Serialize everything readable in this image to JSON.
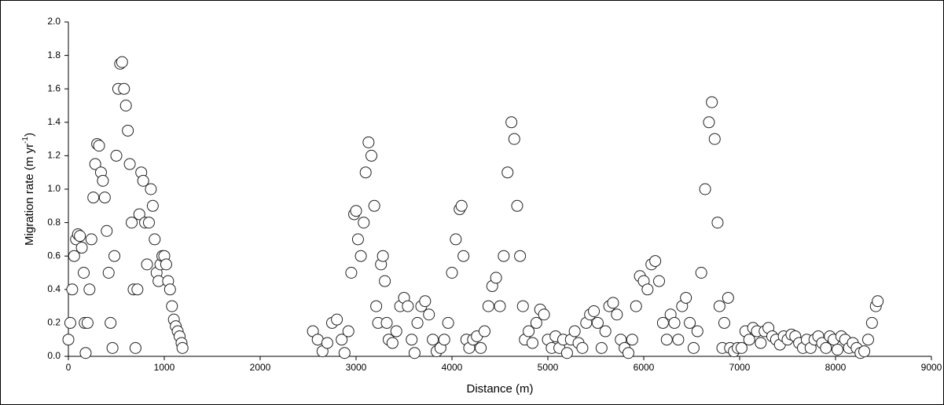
{
  "chart_data": {
    "type": "scatter",
    "xlabel": "Distance (m)",
    "ylabel_parts": [
      "Migration rate (m yr",
      "-1",
      ")"
    ],
    "xlim": [
      0,
      9000
    ],
    "xticks": [
      0,
      1000,
      2000,
      3000,
      4000,
      5000,
      6000,
      7000,
      8000,
      9000
    ],
    "ylim": [
      0,
      2
    ],
    "yticks": [
      {
        "value": 0,
        "label": "0.0"
      },
      0.2,
      0.4,
      0.6,
      0.8,
      {
        "value": 1,
        "label": "1.0"
      },
      1.2,
      1.4,
      1.6,
      1.8,
      {
        "value": 2,
        "label": "2.0"
      }
    ],
    "marker_fill": "#ffffff",
    "marker_edge": "#222222",
    "x": [
      0,
      20,
      40,
      60,
      80,
      100,
      120,
      140,
      160,
      170,
      180,
      200,
      220,
      240,
      260,
      280,
      300,
      320,
      340,
      360,
      380,
      400,
      420,
      440,
      460,
      480,
      500,
      520,
      540,
      560,
      580,
      600,
      620,
      640,
      660,
      680,
      700,
      720,
      740,
      760,
      780,
      800,
      820,
      840,
      860,
      880,
      900,
      920,
      940,
      960,
      980,
      1000,
      1020,
      1040,
      1060,
      1080,
      1100,
      1120,
      1140,
      1160,
      1180,
      1190,
      2550,
      2600,
      2650,
      2700,
      2750,
      2800,
      2850,
      2880,
      2920,
      2950,
      2980,
      3000,
      3020,
      3050,
      3080,
      3100,
      3130,
      3160,
      3190,
      3210,
      3230,
      3260,
      3280,
      3300,
      3320,
      3340,
      3380,
      3420,
      3460,
      3500,
      3540,
      3580,
      3610,
      3640,
      3680,
      3720,
      3760,
      3800,
      3840,
      3880,
      3920,
      3960,
      4000,
      4040,
      4080,
      4100,
      4120,
      4150,
      4180,
      4220,
      4260,
      4300,
      4340,
      4380,
      4420,
      4460,
      4500,
      4540,
      4580,
      4620,
      4650,
      4680,
      4710,
      4740,
      4760,
      4800,
      4840,
      4880,
      4920,
      4960,
      5000,
      5040,
      5080,
      5120,
      5160,
      5200,
      5240,
      5280,
      5320,
      5360,
      5400,
      5440,
      5480,
      5520,
      5560,
      5600,
      5640,
      5680,
      5720,
      5760,
      5800,
      5840,
      5880,
      5920,
      5960,
      6000,
      6040,
      6080,
      6120,
      6160,
      6200,
      6240,
      6280,
      6320,
      6360,
      6400,
      6440,
      6480,
      6520,
      6560,
      6600,
      6640,
      6680,
      6710,
      6740,
      6770,
      6790,
      6820,
      6840,
      6880,
      6900,
      6940,
      6980,
      7020,
      7060,
      7100,
      7140,
      7180,
      7220,
      7260,
      7300,
      7340,
      7380,
      7420,
      7460,
      7500,
      7540,
      7580,
      7620,
      7660,
      7700,
      7740,
      7780,
      7820,
      7860,
      7900,
      7940,
      7980,
      8020,
      8060,
      8100,
      8140,
      8180,
      8220,
      8260,
      8300,
      8340,
      8380,
      8420,
      8440
    ],
    "values": [
      0.1,
      0.2,
      0.4,
      0.6,
      0.7,
      0.73,
      0.72,
      0.65,
      0.5,
      0.2,
      0.02,
      0.2,
      0.4,
      0.7,
      0.95,
      1.15,
      1.27,
      1.26,
      1.1,
      1.05,
      0.95,
      0.75,
      0.5,
      0.2,
      0.05,
      0.6,
      1.2,
      1.6,
      1.75,
      1.76,
      1.6,
      1.5,
      1.35,
      1.15,
      0.8,
      0.4,
      0.05,
      0.4,
      0.85,
      1.1,
      1.05,
      0.8,
      0.55,
      0.8,
      1.0,
      0.9,
      0.7,
      0.5,
      0.45,
      0.55,
      0.6,
      0.6,
      0.55,
      0.45,
      0.4,
      0.3,
      0.22,
      0.18,
      0.15,
      0.12,
      0.08,
      0.05,
      0.15,
      0.1,
      0.03,
      0.08,
      0.2,
      0.22,
      0.1,
      0.02,
      0.15,
      0.5,
      0.85,
      0.87,
      0.7,
      0.6,
      0.8,
      1.1,
      1.28,
      1.2,
      0.9,
      0.3,
      0.2,
      0.55,
      0.6,
      0.45,
      0.2,
      0.1,
      0.08,
      0.15,
      0.3,
      0.35,
      0.3,
      0.1,
      0.02,
      0.2,
      0.3,
      0.33,
      0.25,
      0.1,
      0.03,
      0.05,
      0.1,
      0.2,
      0.5,
      0.7,
      0.88,
      0.9,
      0.6,
      0.1,
      0.05,
      0.1,
      0.12,
      0.05,
      0.15,
      0.3,
      0.42,
      0.47,
      0.3,
      0.6,
      1.1,
      1.4,
      1.3,
      0.9,
      0.6,
      0.3,
      0.1,
      0.15,
      0.08,
      0.2,
      0.28,
      0.25,
      0.1,
      0.05,
      0.12,
      0.05,
      0.1,
      0.02,
      0.1,
      0.15,
      0.08,
      0.05,
      0.2,
      0.25,
      0.27,
      0.2,
      0.05,
      0.15,
      0.3,
      0.32,
      0.25,
      0.1,
      0.05,
      0.02,
      0.1,
      0.3,
      0.48,
      0.45,
      0.4,
      0.55,
      0.57,
      0.45,
      0.2,
      0.1,
      0.25,
      0.2,
      0.1,
      0.3,
      0.35,
      0.2,
      0.05,
      0.15,
      0.5,
      1.0,
      1.4,
      1.52,
      1.3,
      0.8,
      0.3,
      0.05,
      0.2,
      0.35,
      0.05,
      0.03,
      0.05,
      0.05,
      0.15,
      0.1,
      0.17,
      0.15,
      0.08,
      0.15,
      0.17,
      0.12,
      0.1,
      0.07,
      0.12,
      0.1,
      0.13,
      0.12,
      0.08,
      0.05,
      0.1,
      0.05,
      0.1,
      0.12,
      0.08,
      0.05,
      0.12,
      0.1,
      0.04,
      0.12,
      0.1,
      0.05,
      0.08,
      0.05,
      0.02,
      0.03,
      0.1,
      0.2,
      0.3,
      0.33
    ]
  }
}
